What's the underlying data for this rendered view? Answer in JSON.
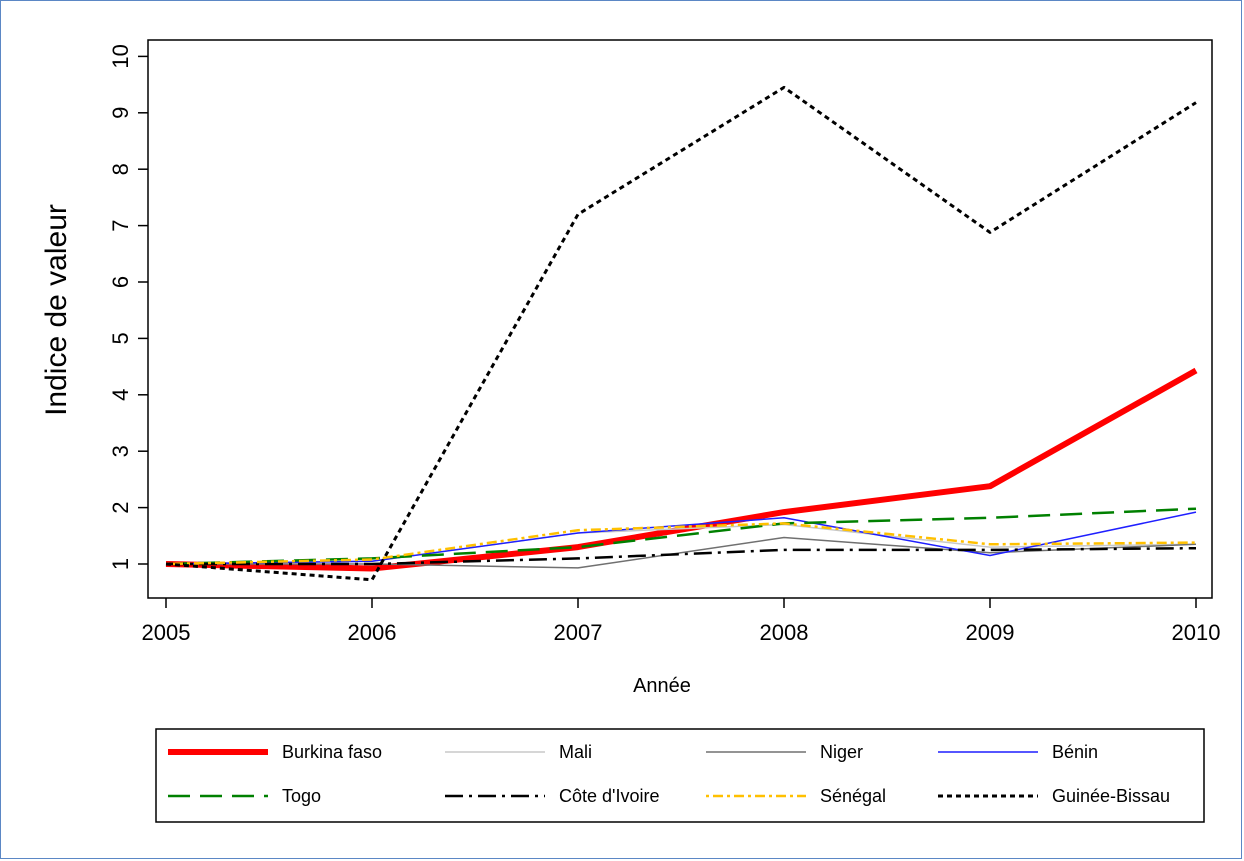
{
  "chart_data": {
    "type": "line",
    "title": "",
    "xlabel": "Année",
    "ylabel": "Indice de valeur",
    "x": [
      2005,
      2006,
      2007,
      2008,
      2009,
      2010
    ],
    "x_tick_labels": [
      "2005",
      "2006",
      "2007",
      "2008",
      "2009",
      "2010"
    ],
    "y_ticks": [
      1,
      2,
      3,
      4,
      5,
      6,
      7,
      8,
      9,
      10
    ],
    "y_tick_labels": [
      "1",
      "2",
      "3",
      "4",
      "5",
      "6",
      "7",
      "8",
      "9",
      "10"
    ],
    "xlim": [
      2005,
      2010
    ],
    "ylim": [
      0.4,
      10.4
    ],
    "grid": false,
    "legend_position": "bottom",
    "series": [
      {
        "name": "Burkina faso",
        "color": "#ff0000",
        "dash": "solid",
        "width": 6,
        "values": [
          1.0,
          0.92,
          1.3,
          1.92,
          2.38,
          4.43
        ]
      },
      {
        "name": "Mali",
        "color": "#c8c8c8",
        "dash": "solid",
        "width": 1.5,
        "values": [
          1.0,
          1.05,
          1.55,
          1.7,
          1.3,
          1.35
        ]
      },
      {
        "name": "Niger",
        "color": "#707070",
        "dash": "solid",
        "width": 1.5,
        "values": [
          1.0,
          1.0,
          0.93,
          1.47,
          1.2,
          1.35
        ]
      },
      {
        "name": "Bénin",
        "color": "#1f1fff",
        "dash": "solid",
        "width": 1.5,
        "values": [
          1.0,
          1.05,
          1.55,
          1.82,
          1.15,
          1.92
        ]
      },
      {
        "name": "Togo",
        "color": "#008000",
        "dash": "longdash",
        "width": 2.5,
        "values": [
          1.0,
          1.1,
          1.3,
          1.72,
          1.82,
          1.98
        ]
      },
      {
        "name": "Côte d'Ivoire",
        "color": "#000000",
        "dash": "dashdot",
        "width": 2.5,
        "values": [
          1.0,
          1.0,
          1.1,
          1.25,
          1.25,
          1.28
        ]
      },
      {
        "name": "Sénégal",
        "color": "#ffc000",
        "dash": "dotdash",
        "width": 2.5,
        "values": [
          1.0,
          1.08,
          1.6,
          1.72,
          1.35,
          1.38
        ]
      },
      {
        "name": "Guinée-Bissau",
        "color": "#000000",
        "dash": "dotted",
        "width": 3,
        "values": [
          1.0,
          0.72,
          7.2,
          9.45,
          6.88,
          9.18
        ]
      }
    ]
  }
}
